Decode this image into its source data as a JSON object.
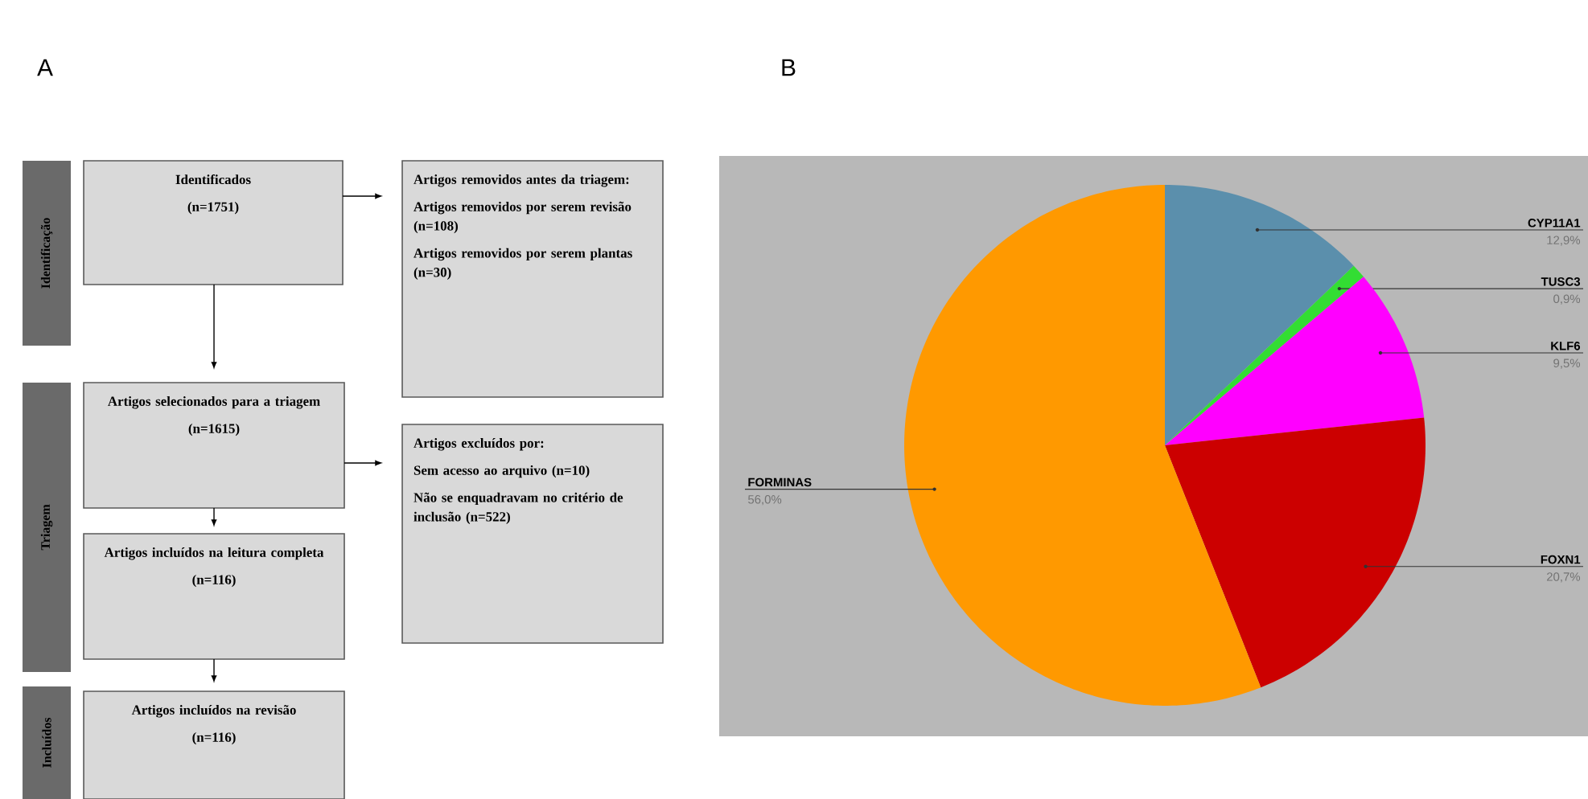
{
  "chart_data": [
    {
      "type": "other",
      "title": "A",
      "annotations": [
        "Identificação",
        "Triagem",
        "Incluídos",
        "Identificados",
        "(n=1751)",
        "Artigos removidos antes da triagem:",
        "Artigos removidos por serem revisão (n=108)",
        "Artigos removidos por serem plantas (n=30)",
        "Artigos selecionados para a triagem",
        "(n=1615)",
        "Artigos excluídos por:",
        "Sem acesso ao arquivo (n=10)",
        "Não se enquadravam no critério de inclusão (n=522)",
        "Artigos incluídos na leitura completa",
        "(n=116)",
        "Artigos incluídos na revisão",
        "(n=116)"
      ]
    },
    {
      "type": "pie",
      "title": "B",
      "categories": [
        "CYP11A1",
        "TUSC3",
        "KLF6",
        "FOXN1",
        "FORMINAS"
      ],
      "values": [
        12.9,
        0.9,
        9.5,
        20.7,
        56.0
      ],
      "colors": [
        "#5b8fac",
        "#33dd33",
        "#ff00ff",
        "#cc0000",
        "#ff9900"
      ],
      "value_labels": [
        "12,9%",
        "0,9%",
        "9,5%",
        "20,7%",
        "56,0%"
      ]
    }
  ]
}
